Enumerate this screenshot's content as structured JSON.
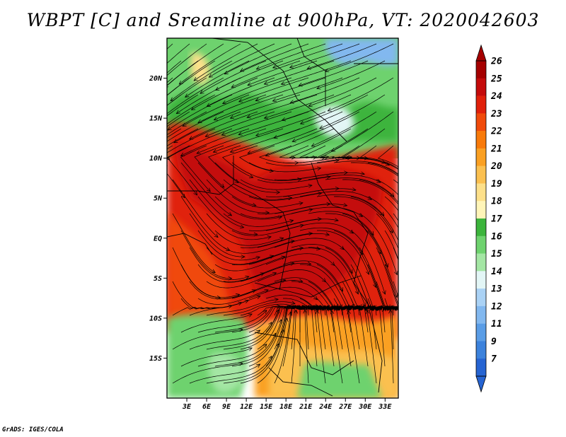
{
  "title": "WBPT [C] and Sreamline at 900hPa, VT: 2020042603",
  "credit": "GrADS: IGES/COLA",
  "map": {
    "lon_range": [
      0,
      35
    ],
    "lat_range": [
      -20,
      25
    ],
    "lat_ticks": [
      {
        "value": 20,
        "label": "20N"
      },
      {
        "value": 15,
        "label": "15N"
      },
      {
        "value": 10,
        "label": "10N"
      },
      {
        "value": 5,
        "label": "5N"
      },
      {
        "value": 0,
        "label": "EQ"
      },
      {
        "value": -5,
        "label": "5S"
      },
      {
        "value": -10,
        "label": "10S"
      },
      {
        "value": -15,
        "label": "15S"
      }
    ],
    "lon_ticks": [
      {
        "value": 3,
        "label": "3E"
      },
      {
        "value": 6,
        "label": "6E"
      },
      {
        "value": 9,
        "label": "9E"
      },
      {
        "value": 12,
        "label": "12E"
      },
      {
        "value": 15,
        "label": "15E"
      },
      {
        "value": 18,
        "label": "18E"
      },
      {
        "value": 21,
        "label": "21E"
      },
      {
        "value": 24,
        "label": "24E"
      },
      {
        "value": 27,
        "label": "27E"
      },
      {
        "value": 30,
        "label": "30E"
      },
      {
        "value": 33,
        "label": "33E"
      }
    ]
  },
  "colorbar": {
    "levels": [
      {
        "label": "26",
        "color": "#a50000"
      },
      {
        "label": "25",
        "color": "#c40b0b"
      },
      {
        "label": "24",
        "color": "#e0200a"
      },
      {
        "label": "23",
        "color": "#f04a0a"
      },
      {
        "label": "22",
        "color": "#f87a0a"
      },
      {
        "label": "21",
        "color": "#faa023"
      },
      {
        "label": "20",
        "color": "#fbc050"
      },
      {
        "label": "19",
        "color": "#fde08a"
      },
      {
        "label": "18",
        "color": "#fff5b8"
      },
      {
        "label": "17",
        "color": "#3cb43c"
      },
      {
        "label": "16",
        "color": "#6ed26e"
      },
      {
        "label": "15",
        "color": "#a4e6a4"
      },
      {
        "label": "14",
        "color": "#e3f6f6"
      },
      {
        "label": "13",
        "color": "#aad2f5"
      },
      {
        "label": "12",
        "color": "#82b8ef"
      },
      {
        "label": "11",
        "color": "#5a9de6"
      },
      {
        "label": "9",
        "color": "#3c82dc"
      },
      {
        "label": "7",
        "color": "#2664d2"
      }
    ]
  },
  "field": {
    "regions": [
      {
        "name": "north-green",
        "color": "#6ed26e"
      },
      {
        "name": "north-dark-green",
        "color": "#3cb43c"
      },
      {
        "name": "northeast-blue",
        "color": "#82b8ef"
      },
      {
        "name": "central-red",
        "color": "#e0200a"
      },
      {
        "name": "core-dark-red",
        "color": "#c40b0b"
      },
      {
        "name": "southern-orange",
        "color": "#faa023"
      },
      {
        "name": "southwest-green",
        "color": "#6ed26e"
      }
    ]
  }
}
